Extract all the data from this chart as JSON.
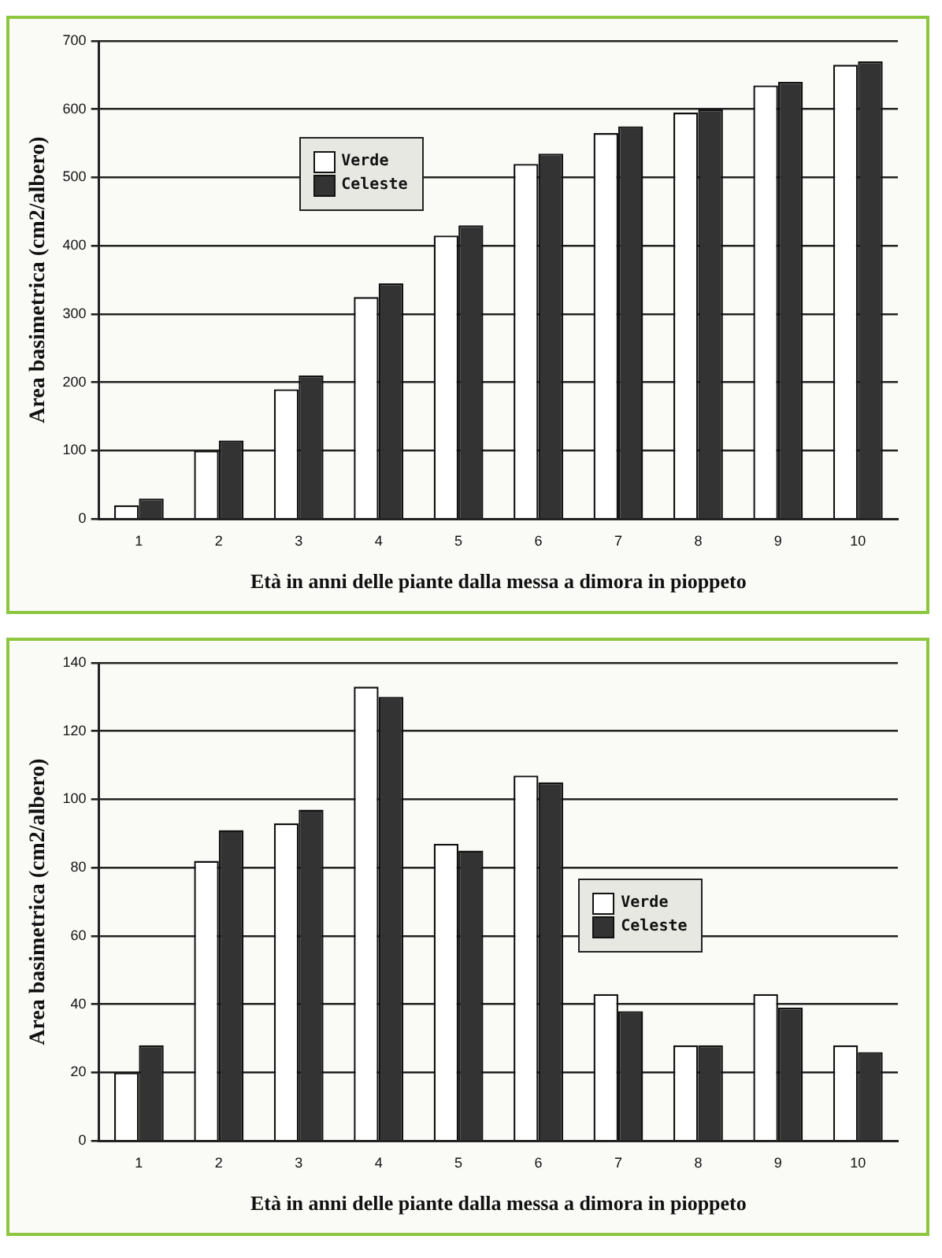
{
  "chart_data": [
    {
      "type": "bar",
      "categories": [
        "1",
        "2",
        "3",
        "4",
        "5",
        "6",
        "7",
        "8",
        "9",
        "10"
      ],
      "xlabel": "Età in anni delle piante dalla messa a dimora in pioppeto",
      "ylabel": "Area basimetrica (cm2/albero)",
      "ylim": [
        0,
        700
      ],
      "yticks": [
        0,
        100,
        200,
        300,
        400,
        500,
        600,
        700
      ],
      "grid": "y",
      "legend": "top left",
      "series": [
        {
          "name": "Verde",
          "color": "#ffffff",
          "values": [
            20,
            100,
            190,
            325,
            415,
            520,
            565,
            595,
            635,
            665
          ]
        },
        {
          "name": "Celeste",
          "color": "#333333",
          "values": [
            30,
            115,
            210,
            345,
            430,
            535,
            575,
            600,
            640,
            670
          ]
        }
      ]
    },
    {
      "type": "bar",
      "categories": [
        "1",
        "2",
        "3",
        "4",
        "5",
        "6",
        "7",
        "8",
        "9",
        "10"
      ],
      "xlabel": "Età in anni delle piante dalla messa a dimora in pioppeto",
      "ylabel": "Area basimetrica (cm2/albero)",
      "ylim": [
        0,
        140
      ],
      "yticks": [
        0,
        20,
        40,
        60,
        80,
        100,
        120,
        140
      ],
      "grid": "y",
      "legend": "right",
      "series": [
        {
          "name": "Verde",
          "color": "#ffffff",
          "values": [
            20,
            82,
            93,
            133,
            87,
            107,
            43,
            28,
            43,
            28
          ]
        },
        {
          "name": "Celeste",
          "color": "#333333",
          "values": [
            28,
            91,
            97,
            130,
            85,
            105,
            38,
            28,
            39,
            26
          ]
        }
      ]
    }
  ]
}
